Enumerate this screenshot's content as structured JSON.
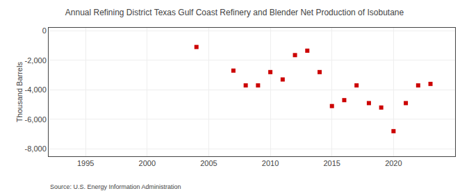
{
  "chart_data": {
    "type": "scatter",
    "title": "Annual Refining District Texas Gulf Coast Refinery and Blender Net Production of Isobutane",
    "ylabel": "Thousand Barrels",
    "source": "Source: U.S. Energy Information Administration",
    "x": [
      2004,
      2007,
      2008,
      2009,
      2010,
      2011,
      2012,
      2013,
      2014,
      2015,
      2016,
      2017,
      2018,
      2019,
      2020,
      2021,
      2022,
      2023
    ],
    "values": [
      -1100,
      -2700,
      -3700,
      -3700,
      -2800,
      -3300,
      -1650,
      -1350,
      -2800,
      -5100,
      -4700,
      -3700,
      -4900,
      -5200,
      -6800,
      -4900,
      -3700,
      -3600
    ],
    "color": "#cc0000",
    "marker": "square",
    "xlim": [
      1992,
      2025
    ],
    "ylim": [
      -8500,
      200
    ],
    "xticks": [
      1995,
      2000,
      2005,
      2010,
      2015,
      2020
    ],
    "yticks": [
      0,
      {
        "value": -2000,
        "label": "-2,000"
      },
      {
        "value": -4000,
        "label": "-4,000"
      },
      {
        "value": -6000,
        "label": "-6,000"
      },
      {
        "value": -8000,
        "label": "-8,000"
      }
    ],
    "grid": true
  }
}
